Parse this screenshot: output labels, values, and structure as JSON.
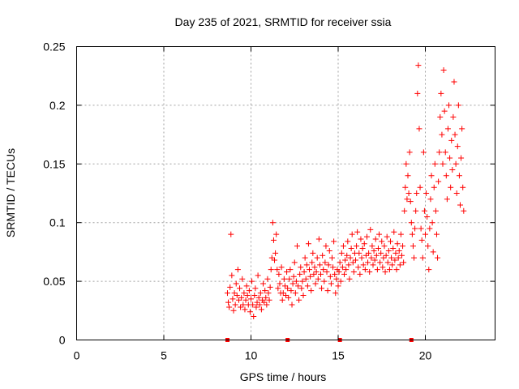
{
  "chart_data": {
    "type": "scatter",
    "title": "Day 235 of 2021, SRMTID for receiver ssia",
    "xlabel": "GPS time / hours",
    "ylabel": "SRMTID / TECUs",
    "xlim": [
      0,
      24
    ],
    "ylim": [
      0,
      0.25
    ],
    "xticks": [
      0,
      5,
      10,
      15,
      20
    ],
    "yticks": [
      0,
      0.05,
      0.1,
      0.15,
      0.2,
      0.25
    ],
    "xtick_labels": [
      "0",
      "5",
      "10",
      "15",
      "20"
    ],
    "ytick_labels": [
      "0",
      "0.05",
      "0.1",
      "0.15",
      "0.2",
      "0.25"
    ],
    "grid": true,
    "marker": "+",
    "color": "#ff0000",
    "baseline_markers": {
      "marker": "square",
      "y": 0,
      "x": [
        8.65,
        12.1,
        15.1,
        19.2
      ]
    },
    "series": [
      {
        "name": "SRMTID",
        "points": [
          [
            8.65,
            0.04
          ],
          [
            8.7,
            0.032
          ],
          [
            8.75,
            0.028
          ],
          [
            8.8,
            0.045
          ],
          [
            8.85,
            0.09
          ],
          [
            8.9,
            0.055
          ],
          [
            8.95,
            0.035
          ],
          [
            9.0,
            0.025
          ],
          [
            9.05,
            0.04
          ],
          [
            9.1,
            0.03
          ],
          [
            9.15,
            0.048
          ],
          [
            9.2,
            0.038
          ],
          [
            9.25,
            0.06
          ],
          [
            9.3,
            0.034
          ],
          [
            9.35,
            0.044
          ],
          [
            9.4,
            0.028
          ],
          [
            9.45,
            0.036
          ],
          [
            9.5,
            0.052
          ],
          [
            9.55,
            0.03
          ],
          [
            9.6,
            0.04
          ],
          [
            9.65,
            0.026
          ],
          [
            9.7,
            0.034
          ],
          [
            9.75,
            0.046
          ],
          [
            9.8,
            0.038
          ],
          [
            9.85,
            0.03
          ],
          [
            9.9,
            0.042
          ],
          [
            9.95,
            0.024
          ],
          [
            10.0,
            0.035
          ],
          [
            10.05,
            0.05
          ],
          [
            10.1,
            0.03
          ],
          [
            10.15,
            0.02
          ],
          [
            10.2,
            0.038
          ],
          [
            10.25,
            0.044
          ],
          [
            10.3,
            0.028
          ],
          [
            10.35,
            0.032
          ],
          [
            10.4,
            0.055
          ],
          [
            10.45,
            0.036
          ],
          [
            10.5,
            0.03
          ],
          [
            10.55,
            0.04
          ],
          [
            10.6,
            0.026
          ],
          [
            10.65,
            0.034
          ],
          [
            10.7,
            0.048
          ],
          [
            10.75,
            0.032
          ],
          [
            10.8,
            0.042
          ],
          [
            10.85,
            0.036
          ],
          [
            10.9,
            0.03
          ],
          [
            10.95,
            0.052
          ],
          [
            11.0,
            0.04
          ],
          [
            11.05,
            0.034
          ],
          [
            11.1,
            0.045
          ],
          [
            11.15,
            0.06
          ],
          [
            11.2,
            0.07
          ],
          [
            11.25,
            0.1
          ],
          [
            11.3,
            0.085
          ],
          [
            11.35,
            0.068
          ],
          [
            11.4,
            0.074
          ],
          [
            11.45,
            0.09
          ],
          [
            11.5,
            0.06
          ],
          [
            11.55,
            0.044
          ],
          [
            11.6,
            0.056
          ],
          [
            11.65,
            0.048
          ],
          [
            11.7,
            0.04
          ],
          [
            11.75,
            0.062
          ],
          [
            11.8,
            0.034
          ],
          [
            11.85,
            0.04
          ],
          [
            11.9,
            0.052
          ],
          [
            11.95,
            0.046
          ],
          [
            12.0,
            0.038
          ],
          [
            12.05,
            0.058
          ],
          [
            12.1,
            0.044
          ],
          [
            12.15,
            0.036
          ],
          [
            12.2,
            0.052
          ],
          [
            12.25,
            0.06
          ],
          [
            12.3,
            0.042
          ],
          [
            12.35,
            0.03
          ],
          [
            12.4,
            0.048
          ],
          [
            12.45,
            0.054
          ],
          [
            12.5,
            0.066
          ],
          [
            12.55,
            0.04
          ],
          [
            12.6,
            0.05
          ],
          [
            12.65,
            0.08
          ],
          [
            12.7,
            0.046
          ],
          [
            12.75,
            0.034
          ],
          [
            12.8,
            0.056
          ],
          [
            12.85,
            0.062
          ],
          [
            12.9,
            0.044
          ],
          [
            12.95,
            0.05
          ],
          [
            13.0,
            0.038
          ],
          [
            13.05,
            0.058
          ],
          [
            13.1,
            0.07
          ],
          [
            13.15,
            0.052
          ],
          [
            13.2,
            0.064
          ],
          [
            13.25,
            0.046
          ],
          [
            13.3,
            0.082
          ],
          [
            13.35,
            0.06
          ],
          [
            13.4,
            0.054
          ],
          [
            13.45,
            0.042
          ],
          [
            13.5,
            0.066
          ],
          [
            13.55,
            0.074
          ],
          [
            13.6,
            0.056
          ],
          [
            13.65,
            0.062
          ],
          [
            13.7,
            0.048
          ],
          [
            13.75,
            0.058
          ],
          [
            13.8,
            0.07
          ],
          [
            13.85,
            0.052
          ],
          [
            13.9,
            0.086
          ],
          [
            13.95,
            0.064
          ],
          [
            14.0,
            0.056
          ],
          [
            14.05,
            0.044
          ],
          [
            14.1,
            0.072
          ],
          [
            14.15,
            0.06
          ],
          [
            14.2,
            0.05
          ],
          [
            14.25,
            0.066
          ],
          [
            14.3,
            0.08
          ],
          [
            14.35,
            0.058
          ],
          [
            14.4,
            0.042
          ],
          [
            14.45,
            0.064
          ],
          [
            14.5,
            0.076
          ],
          [
            14.55,
            0.054
          ],
          [
            14.6,
            0.048
          ],
          [
            14.65,
            0.07
          ],
          [
            14.7,
            0.062
          ],
          [
            14.75,
            0.084
          ],
          [
            14.8,
            0.056
          ],
          [
            14.85,
            0.04
          ],
          [
            14.9,
            0.052
          ],
          [
            14.95,
            0.06
          ],
          [
            15.0,
            0.046
          ],
          [
            15.05,
            0.058
          ],
          [
            15.1,
            0.066
          ],
          [
            15.15,
            0.05
          ],
          [
            15.2,
            0.074
          ],
          [
            15.25,
            0.062
          ],
          [
            15.3,
            0.08
          ],
          [
            15.35,
            0.056
          ],
          [
            15.4,
            0.068
          ],
          [
            15.45,
            0.06
          ],
          [
            15.5,
            0.072
          ],
          [
            15.55,
            0.084
          ],
          [
            15.6,
            0.064
          ],
          [
            15.65,
            0.052
          ],
          [
            15.7,
            0.07
          ],
          [
            15.75,
            0.078
          ],
          [
            15.8,
            0.09
          ],
          [
            15.85,
            0.066
          ],
          [
            15.9,
            0.058
          ],
          [
            15.95,
            0.074
          ],
          [
            16.0,
            0.068
          ],
          [
            16.05,
            0.08
          ],
          [
            16.1,
            0.092
          ],
          [
            16.15,
            0.062
          ],
          [
            16.2,
            0.074
          ],
          [
            16.25,
            0.056
          ],
          [
            16.3,
            0.086
          ],
          [
            16.35,
            0.07
          ],
          [
            16.4,
            0.078
          ],
          [
            16.45,
            0.064
          ],
          [
            16.5,
            0.082
          ],
          [
            16.55,
            0.06
          ],
          [
            16.6,
            0.072
          ],
          [
            16.65,
            0.088
          ],
          [
            16.7,
            0.066
          ],
          [
            16.75,
            0.074
          ],
          [
            16.8,
            0.058
          ],
          [
            16.85,
            0.094
          ],
          [
            16.9,
            0.07
          ],
          [
            16.95,
            0.08
          ],
          [
            17.0,
            0.064
          ],
          [
            17.05,
            0.076
          ],
          [
            17.1,
            0.068
          ],
          [
            17.15,
            0.086
          ],
          [
            17.2,
            0.072
          ],
          [
            17.25,
            0.06
          ],
          [
            17.3,
            0.078
          ],
          [
            17.35,
            0.09
          ],
          [
            17.4,
            0.066
          ],
          [
            17.45,
            0.074
          ],
          [
            17.5,
            0.084
          ],
          [
            17.55,
            0.062
          ],
          [
            17.6,
            0.07
          ],
          [
            17.65,
            0.08
          ],
          [
            17.7,
            0.058
          ],
          [
            17.75,
            0.072
          ],
          [
            17.8,
            0.088
          ],
          [
            17.85,
            0.066
          ],
          [
            17.9,
            0.076
          ],
          [
            17.95,
            0.06
          ],
          [
            18.0,
            0.084
          ],
          [
            18.05,
            0.07
          ],
          [
            18.1,
            0.064
          ],
          [
            18.15,
            0.078
          ],
          [
            18.2,
            0.092
          ],
          [
            18.25,
            0.068
          ],
          [
            18.3,
            0.074
          ],
          [
            18.35,
            0.06
          ],
          [
            18.4,
            0.082
          ],
          [
            18.45,
            0.07
          ],
          [
            18.5,
            0.076
          ],
          [
            18.55,
            0.064
          ],
          [
            18.6,
            0.09
          ],
          [
            18.65,
            0.072
          ],
          [
            18.7,
            0.08
          ],
          [
            18.75,
            0.066
          ],
          [
            18.8,
            0.11
          ],
          [
            18.85,
            0.13
          ],
          [
            18.9,
            0.15
          ],
          [
            18.95,
            0.12
          ],
          [
            19.0,
            0.14
          ],
          [
            19.05,
            0.125
          ],
          [
            19.1,
            0.16
          ],
          [
            19.15,
            0.118
          ],
          [
            19.2,
            0.1
          ],
          [
            19.25,
            0.09
          ],
          [
            19.3,
            0.08
          ],
          [
            19.35,
            0.07
          ],
          [
            19.4,
            0.095
          ],
          [
            19.45,
            0.11
          ],
          [
            19.5,
            0.125
          ],
          [
            19.55,
            0.21
          ],
          [
            19.6,
            0.234
          ],
          [
            19.65,
            0.18
          ],
          [
            19.7,
            0.13
          ],
          [
            19.75,
            0.095
          ],
          [
            19.8,
            0.085
          ],
          [
            19.85,
            0.07
          ],
          [
            19.9,
            0.16
          ],
          [
            19.95,
            0.11
          ],
          [
            20.0,
            0.09
          ],
          [
            20.05,
            0.125
          ],
          [
            20.1,
            0.105
          ],
          [
            20.15,
            0.08
          ],
          [
            20.2,
            0.06
          ],
          [
            20.25,
            0.095
          ],
          [
            20.3,
            0.12
          ],
          [
            20.35,
            0.14
          ],
          [
            20.4,
            0.1
          ],
          [
            20.45,
            0.075
          ],
          [
            20.5,
            0.13
          ],
          [
            20.55,
            0.15
          ],
          [
            20.6,
            0.11
          ],
          [
            20.65,
            0.09
          ],
          [
            20.7,
            0.07
          ],
          [
            20.75,
            0.135
          ],
          [
            20.8,
            0.16
          ],
          [
            20.85,
            0.19
          ],
          [
            20.9,
            0.21
          ],
          [
            20.95,
            0.175
          ],
          [
            21.0,
            0.15
          ],
          [
            21.05,
            0.23
          ],
          [
            21.1,
            0.195
          ],
          [
            21.15,
            0.16
          ],
          [
            21.2,
            0.14
          ],
          [
            21.25,
            0.12
          ],
          [
            21.3,
            0.18
          ],
          [
            21.35,
            0.2
          ],
          [
            21.4,
            0.155
          ],
          [
            21.45,
            0.13
          ],
          [
            21.5,
            0.17
          ],
          [
            21.55,
            0.145
          ],
          [
            21.6,
            0.19
          ],
          [
            21.65,
            0.22
          ],
          [
            21.7,
            0.175
          ],
          [
            21.75,
            0.15
          ],
          [
            21.8,
            0.125
          ],
          [
            21.85,
            0.165
          ],
          [
            21.9,
            0.2
          ],
          [
            21.95,
            0.14
          ],
          [
            22.0,
            0.115
          ],
          [
            22.05,
            0.155
          ],
          [
            22.1,
            0.18
          ],
          [
            22.15,
            0.13
          ],
          [
            22.2,
            0.11
          ]
        ]
      }
    ]
  }
}
